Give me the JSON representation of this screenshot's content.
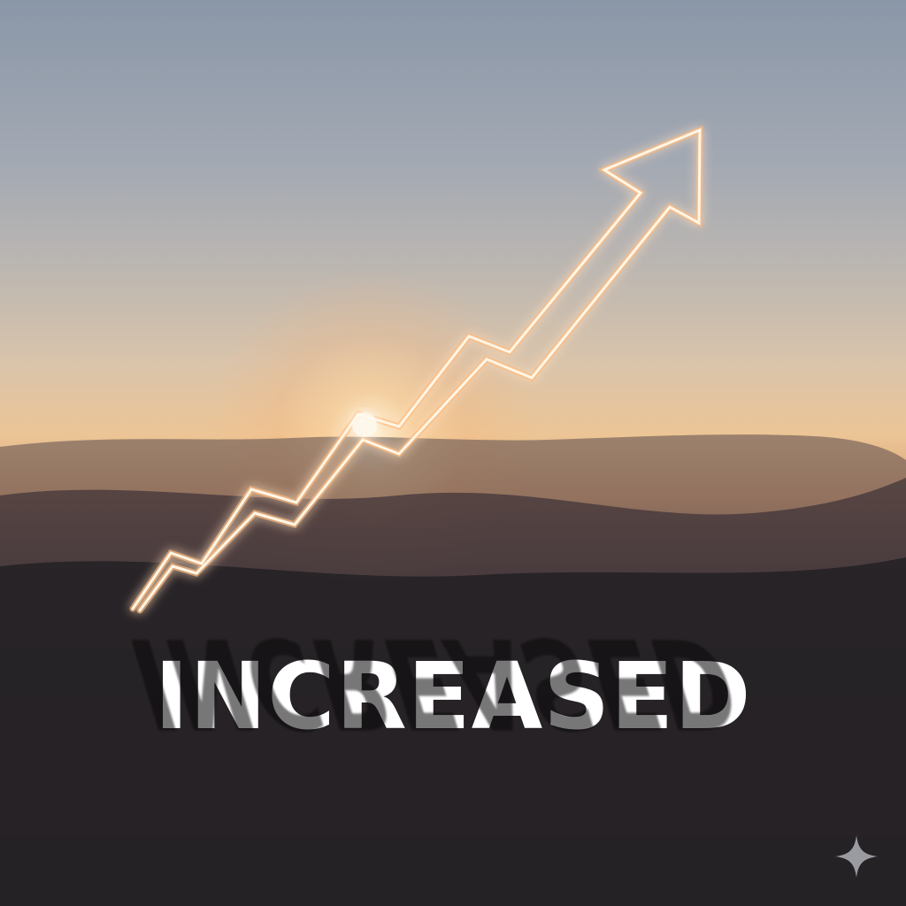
{
  "headline": {
    "text": "INCREASED"
  },
  "colors": {
    "arrow_glow": "#ffb877",
    "arrow_core": "#fff6e6",
    "text": "#ffffff",
    "sparkle": "#9a9ba0"
  },
  "icons": {
    "corner": "sparkle-icon"
  }
}
